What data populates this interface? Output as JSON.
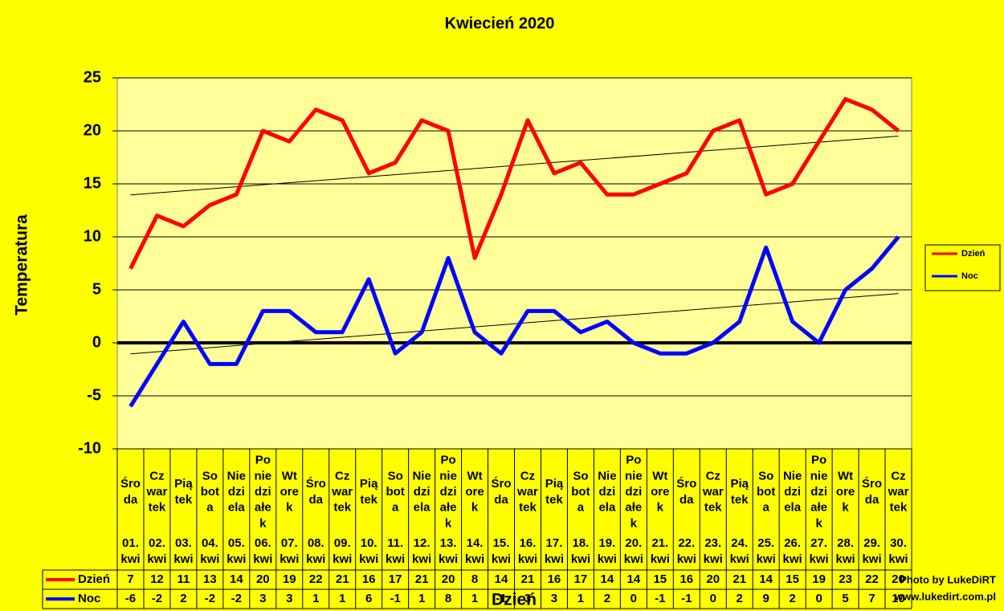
{
  "chart_data": {
    "type": "line",
    "title": "Kwiecień 2020",
    "y_label": "Temperatura",
    "x_label": "Dzień",
    "annotations": [
      "Photo by LukeDiRT",
      "www.lukedirt.com.pl"
    ],
    "categories": [
      {
        "day": [
          "Śro",
          "da"
        ],
        "date": [
          "01.",
          "kwi"
        ]
      },
      {
        "day": [
          "Cz",
          "war",
          "tek"
        ],
        "date": [
          "02.",
          "kwi"
        ]
      },
      {
        "day": [
          "Pią",
          "tek"
        ],
        "date": [
          "03.",
          "kwi"
        ]
      },
      {
        "day": [
          "So",
          "bot",
          "a"
        ],
        "date": [
          "04.",
          "kwi"
        ]
      },
      {
        "day": [
          "Nie",
          "dzi",
          "ela"
        ],
        "date": [
          "05.",
          "kwi"
        ]
      },
      {
        "day": [
          "Po",
          "nie",
          "dzi",
          "ałe",
          "k"
        ],
        "date": [
          "06.",
          "kwi"
        ]
      },
      {
        "day": [
          "Wt",
          "ore",
          "k"
        ],
        "date": [
          "07.",
          "kwi"
        ]
      },
      {
        "day": [
          "Śro",
          "da"
        ],
        "date": [
          "08.",
          "kwi"
        ]
      },
      {
        "day": [
          "Cz",
          "war",
          "tek"
        ],
        "date": [
          "09.",
          "kwi"
        ]
      },
      {
        "day": [
          "Pią",
          "tek"
        ],
        "date": [
          "10.",
          "kwi"
        ]
      },
      {
        "day": [
          "So",
          "bot",
          "a"
        ],
        "date": [
          "11.",
          "kwi"
        ]
      },
      {
        "day": [
          "Nie",
          "dzi",
          "ela"
        ],
        "date": [
          "12.",
          "kwi"
        ]
      },
      {
        "day": [
          "Po",
          "nie",
          "dzi",
          "ałe",
          "k"
        ],
        "date": [
          "13.",
          "kwi"
        ]
      },
      {
        "day": [
          "Wt",
          "ore",
          "k"
        ],
        "date": [
          "14.",
          "kwi"
        ]
      },
      {
        "day": [
          "Śro",
          "da"
        ],
        "date": [
          "15.",
          "kwi"
        ]
      },
      {
        "day": [
          "Cz",
          "war",
          "tek"
        ],
        "date": [
          "16.",
          "kwi"
        ]
      },
      {
        "day": [
          "Pią",
          "tek"
        ],
        "date": [
          "17.",
          "kwi"
        ]
      },
      {
        "day": [
          "So",
          "bot",
          "a"
        ],
        "date": [
          "18.",
          "kwi"
        ]
      },
      {
        "day": [
          "Nie",
          "dzi",
          "ela"
        ],
        "date": [
          "19.",
          "kwi"
        ]
      },
      {
        "day": [
          "Po",
          "nie",
          "dzi",
          "ałe",
          "k"
        ],
        "date": [
          "20.",
          "kwi"
        ]
      },
      {
        "day": [
          "Wt",
          "ore",
          "k"
        ],
        "date": [
          "21.",
          "kwi"
        ]
      },
      {
        "day": [
          "Śro",
          "da"
        ],
        "date": [
          "22.",
          "kwi"
        ]
      },
      {
        "day": [
          "Cz",
          "war",
          "tek"
        ],
        "date": [
          "23.",
          "kwi"
        ]
      },
      {
        "day": [
          "Pią",
          "tek"
        ],
        "date": [
          "24.",
          "kwi"
        ]
      },
      {
        "day": [
          "So",
          "bot",
          "a"
        ],
        "date": [
          "25.",
          "kwi"
        ]
      },
      {
        "day": [
          "Nie",
          "dzi",
          "ela"
        ],
        "date": [
          "26.",
          "kwi"
        ]
      },
      {
        "day": [
          "Po",
          "nie",
          "dzi",
          "ałe",
          "k"
        ],
        "date": [
          "27.",
          "kwi"
        ]
      },
      {
        "day": [
          "Wt",
          "ore",
          "k"
        ],
        "date": [
          "28.",
          "kwi"
        ]
      },
      {
        "day": [
          "Śro",
          "da"
        ],
        "date": [
          "29.",
          "kwi"
        ]
      },
      {
        "day": [
          "Cz",
          "war",
          "tek"
        ],
        "date": [
          "30.",
          "kwi"
        ]
      }
    ],
    "series": [
      {
        "name": "Dzień",
        "color": "#ff0000",
        "values": [
          7,
          12,
          11,
          13,
          14,
          20,
          19,
          22,
          21,
          16,
          17,
          21,
          20,
          8,
          14,
          21,
          16,
          17,
          14,
          14,
          15,
          16,
          20,
          21,
          14,
          15,
          19,
          23,
          22,
          20
        ]
      },
      {
        "name": "Noc",
        "color": "#0000ff",
        "values": [
          -6,
          -2,
          2,
          -2,
          -2,
          3,
          3,
          1,
          1,
          6,
          -1,
          1,
          8,
          1,
          -1,
          3,
          3,
          1,
          2,
          0,
          -1,
          -1,
          0,
          2,
          9,
          2,
          0,
          5,
          7,
          10
        ]
      }
    ],
    "ylim": [
      -10,
      25
    ],
    "yticks": [
      -10,
      -5,
      0,
      5,
      10,
      15,
      20,
      25
    ],
    "grid": true,
    "trendline": true,
    "legend": "right",
    "data_table": true
  }
}
